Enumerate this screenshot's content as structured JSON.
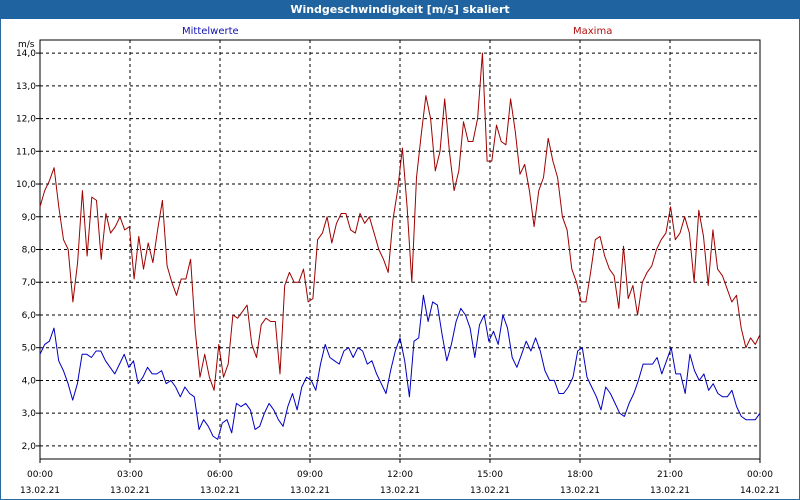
{
  "window": {
    "title": "Windgeschwindigkeit [m/s] skaliert"
  },
  "chart_data": {
    "type": "line",
    "title": "Windgeschwindigkeit [m/s] skaliert",
    "ylabel": "m/s",
    "ylim": [
      1.6,
      14.4
    ],
    "yticks": [
      "2,0",
      "3,0",
      "4,0",
      "5,0",
      "6,0",
      "7,0",
      "8,0",
      "9,0",
      "10,0",
      "11,0",
      "12,0",
      "13,0",
      "14,0"
    ],
    "xlim": [
      0,
      24
    ],
    "xticks": [
      {
        "time": "00:00",
        "date": "13.02.21"
      },
      {
        "time": "03:00",
        "date": "13.02.21"
      },
      {
        "time": "06:00",
        "date": "13.02.21"
      },
      {
        "time": "09:00",
        "date": "13.02.21"
      },
      {
        "time": "12:00",
        "date": "13.02.21"
      },
      {
        "time": "15:00",
        "date": "13.02.21"
      },
      {
        "time": "18:00",
        "date": "13.02.21"
      },
      {
        "time": "21:00",
        "date": "13.02.21"
      },
      {
        "time": "00:00",
        "date": "14.02.21"
      }
    ],
    "grid": true,
    "series": [
      {
        "name": "Mittelwerte",
        "color": "#0000c0",
        "values": [
          4.8,
          5.1,
          5.2,
          5.6,
          4.6,
          4.3,
          3.9,
          3.4,
          3.9,
          4.8,
          4.8,
          4.7,
          4.9,
          4.9,
          4.6,
          4.4,
          4.2,
          4.5,
          4.8,
          4.4,
          4.6,
          3.9,
          4.1,
          4.4,
          4.2,
          4.2,
          4.3,
          3.9,
          4.0,
          3.8,
          3.5,
          3.8,
          3.6,
          3.5,
          2.5,
          2.8,
          2.6,
          2.3,
          2.2,
          2.7,
          2.8,
          2.4,
          3.3,
          3.2,
          3.3,
          3.1,
          2.5,
          2.6,
          3.0,
          3.3,
          3.1,
          2.8,
          2.6,
          3.2,
          3.6,
          3.1,
          3.8,
          4.1,
          4.0,
          3.7,
          4.5,
          5.1,
          4.7,
          4.6,
          4.5,
          4.9,
          5.0,
          4.7,
          5.0,
          4.9,
          4.5,
          4.6,
          4.2,
          3.9,
          3.6,
          4.3,
          4.9,
          5.3,
          4.6,
          3.5,
          5.2,
          5.3,
          6.6,
          5.8,
          6.4,
          6.3,
          5.4,
          4.6,
          5.1,
          5.8,
          6.2,
          6.0,
          5.6,
          4.7,
          5.7,
          6.0,
          5.2,
          5.5,
          5.1,
          6.0,
          5.6,
          4.7,
          4.4,
          4.8,
          5.2,
          4.9,
          5.3,
          4.9,
          4.3,
          4.0,
          4.0,
          3.6,
          3.6,
          3.8,
          4.1,
          4.9,
          5.0,
          4.1,
          3.8,
          3.5,
          3.1,
          3.8,
          3.6,
          3.3,
          3.0,
          2.9,
          3.3,
          3.6,
          4.0,
          4.5,
          4.5,
          4.5,
          4.7,
          4.2,
          4.6,
          5.0,
          4.2,
          4.2,
          3.6,
          4.8,
          4.3,
          4.0,
          4.2,
          3.7,
          3.9,
          3.6,
          3.5,
          3.5,
          3.7,
          3.2,
          2.9,
          2.8,
          2.8,
          2.8,
          3.0
        ]
      },
      {
        "name": "Maxima",
        "color": "#a00000",
        "values": [
          9.3,
          9.8,
          10.1,
          10.5,
          9.3,
          8.3,
          8.0,
          6.4,
          7.6,
          9.8,
          7.8,
          9.6,
          9.5,
          7.7,
          9.1,
          8.5,
          8.7,
          9.0,
          8.6,
          8.7,
          7.1,
          8.4,
          7.4,
          8.2,
          7.6,
          8.6,
          9.5,
          7.5,
          7.0,
          6.6,
          7.1,
          7.1,
          7.7,
          5.5,
          4.1,
          4.8,
          4.1,
          3.7,
          5.1,
          4.1,
          4.5,
          6.0,
          5.9,
          6.1,
          6.3,
          5.1,
          4.7,
          5.7,
          5.9,
          5.8,
          5.8,
          4.2,
          6.9,
          7.3,
          7.0,
          7.0,
          7.4,
          6.4,
          6.5,
          8.3,
          8.5,
          9.0,
          8.2,
          8.8,
          9.1,
          9.1,
          8.6,
          8.5,
          9.1,
          8.8,
          9.0,
          8.5,
          8.0,
          7.7,
          7.3,
          8.9,
          9.8,
          11.1,
          9.3,
          7.0,
          10.2,
          11.5,
          12.7,
          12.0,
          10.4,
          11.0,
          12.6,
          11.0,
          9.8,
          10.4,
          11.9,
          11.3,
          11.3,
          12.0,
          14.0,
          10.7,
          10.7,
          11.8,
          11.3,
          11.2,
          12.6,
          11.6,
          10.3,
          10.6,
          9.8,
          8.7,
          9.8,
          10.2,
          11.4,
          10.7,
          10.2,
          9.0,
          8.6,
          7.4,
          7.0,
          6.4,
          6.4,
          7.3,
          8.3,
          8.4,
          7.8,
          7.4,
          7.2,
          6.2,
          8.1,
          6.5,
          6.9,
          6.0,
          7.0,
          7.3,
          7.5,
          8.0,
          8.3,
          8.5,
          9.3,
          8.3,
          8.5,
          9.0,
          8.5,
          7.0,
          9.2,
          8.4,
          6.9,
          8.6,
          7.4,
          7.2,
          6.8,
          6.4,
          6.6,
          5.6,
          5.0,
          5.3,
          5.1,
          5.4
        ]
      }
    ]
  }
}
